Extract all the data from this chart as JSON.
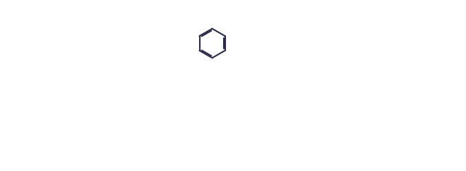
{
  "bg": "#ffffff",
  "line_color": "#2d2d4e",
  "lw": 1.5,
  "figw": 6.6,
  "figh": 2.43,
  "dpi": 100
}
